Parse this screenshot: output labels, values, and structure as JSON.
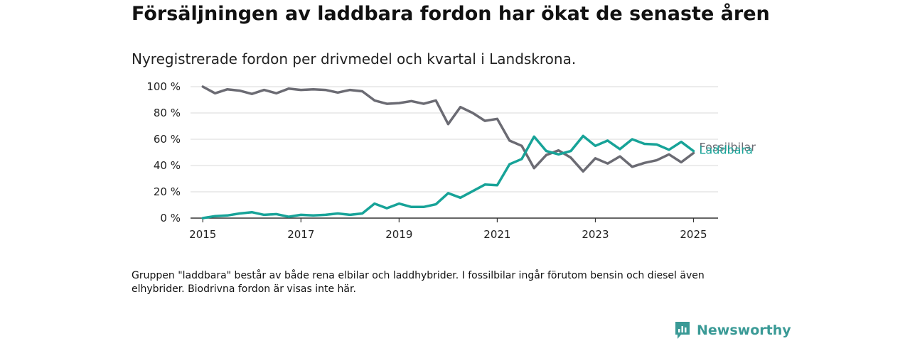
{
  "title": "Försäljningen av laddbara fordon har ökat de senaste åren",
  "subtitle": "Nyregistrerade fordon per drivmedel och kvartal i Landskrona.",
  "footnote": "Gruppen \"laddbara\" består av både rena elbilar och laddhybrider. I fossilbilar ingår förutom bensin och diesel även elhybrider. Biodrivna fordon är visas inte här.",
  "brand": {
    "name": "Newsworthy",
    "color": "#3a9a96"
  },
  "chart_data": {
    "type": "line",
    "title": "",
    "xlabel": "",
    "ylabel": "",
    "x_ticks": [
      "2015",
      "2017",
      "2019",
      "2021",
      "2023",
      "2025"
    ],
    "y_ticks": [
      "0 %",
      "20 %",
      "40 %",
      "60 %",
      "80 %",
      "100 %"
    ],
    "ylim": [
      0,
      100
    ],
    "xlim": [
      2014.75,
      2025.5
    ],
    "grid": "horizontal",
    "x": [
      2015.0,
      2015.25,
      2015.5,
      2015.75,
      2016.0,
      2016.25,
      2016.5,
      2016.75,
      2017.0,
      2017.25,
      2017.5,
      2017.75,
      2018.0,
      2018.25,
      2018.5,
      2018.75,
      2019.0,
      2019.25,
      2019.5,
      2019.75,
      2020.0,
      2020.25,
      2020.5,
      2020.75,
      2021.0,
      2021.25,
      2021.5,
      2021.75,
      2022.0,
      2022.25,
      2022.5,
      2022.75,
      2023.0,
      2023.25,
      2023.5,
      2023.75,
      2024.0,
      2024.25,
      2024.5,
      2024.75,
      2025.0
    ],
    "series": [
      {
        "name": "Fossilbilar",
        "color": "#6b6b73",
        "values": [
          100,
          95,
          98,
          97,
          94.5,
          97.5,
          95,
          98.5,
          97.5,
          98,
          97.5,
          95.5,
          97.5,
          96.5,
          89.5,
          87,
          87.5,
          89,
          87,
          89.5,
          71.5,
          84.5,
          80,
          74,
          75.5,
          59,
          55,
          38,
          48,
          51.5,
          46,
          35.5,
          45.5,
          41.5,
          47,
          39,
          42,
          44,
          48.5,
          42.5,
          49.5
        ]
      },
      {
        "name": "Laddbara",
        "color": "#17a398",
        "values": [
          0,
          1.5,
          2,
          3.5,
          4.5,
          2.5,
          3,
          1,
          2.5,
          2,
          2.5,
          3.5,
          2.5,
          3.5,
          11,
          7.5,
          11,
          8.5,
          8.5,
          10.5,
          19,
          15.5,
          20.5,
          25.5,
          25,
          41,
          45,
          62,
          51,
          48.5,
          51,
          62.5,
          55,
          59,
          52.5,
          60,
          56.5,
          56,
          52,
          58,
          51
        ]
      }
    ]
  }
}
